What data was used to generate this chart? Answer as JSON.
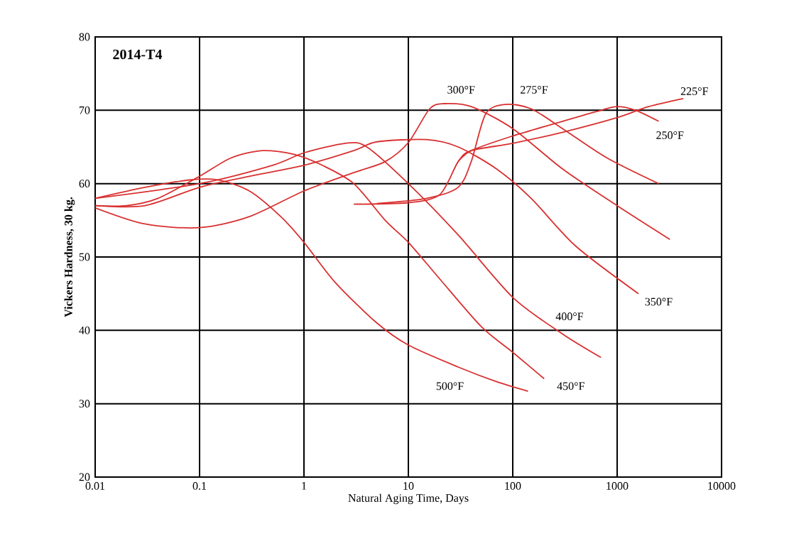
{
  "chart_data": {
    "type": "line",
    "xlabel": "Natural Aging Time, Days",
    "ylabel": "Vickers Hardness, 30 kg.",
    "log": "x",
    "grid": true,
    "marker": "none",
    "line_style": "solid",
    "xlim": [
      0.01,
      10000
    ],
    "xticks": [
      0.01,
      0.1,
      1,
      10,
      100,
      1000,
      10000
    ],
    "ylim": [
      20,
      80
    ],
    "yticks": [
      20,
      30,
      40,
      50,
      60,
      70,
      80
    ],
    "series": [
      {
        "color": "#d93030",
        "x": [
          3,
          10,
          20,
          30,
          40,
          100,
          300,
          1000,
          2000,
          4300
        ],
        "values": [
          57.2,
          57.4,
          58.5,
          63,
          64.5,
          65.5,
          67,
          69,
          70.5,
          71.6
        ]
      },
      {
        "color": "#d93030",
        "x": [
          30,
          40,
          100,
          300,
          700,
          1000,
          1500,
          2500
        ],
        "values": [
          63,
          64.5,
          66.5,
          68.5,
          70,
          70.5,
          70,
          68.5
        ]
      },
      {
        "color": "#d93030",
        "x": [
          5,
          15,
          30,
          40,
          55,
          85,
          150,
          300,
          800,
          2500
        ],
        "values": [
          57.3,
          58,
          59.5,
          63,
          69.5,
          70.8,
          70.2,
          67.5,
          63.5,
          60
        ]
      },
      {
        "color": "#d93030",
        "x": [
          0.01,
          0.03,
          0.1,
          0.3,
          1,
          3,
          6,
          10,
          16,
          22,
          40,
          100,
          300,
          1000,
          3200
        ],
        "values": [
          56.7,
          54.5,
          54,
          55.5,
          59,
          61.5,
          63,
          65.6,
          70.2,
          70.9,
          70.5,
          67.5,
          62,
          57,
          52.4
        ]
      },
      {
        "color": "#d93030",
        "x": [
          0.01,
          0.03,
          0.1,
          0.3,
          1,
          3,
          5,
          15,
          30,
          70,
          150,
          400,
          1600
        ],
        "values": [
          57,
          57,
          59.5,
          61,
          62.5,
          64.5,
          65.7,
          66,
          65,
          62,
          58,
          51.5,
          45
        ]
      },
      {
        "color": "#d93030",
        "x": [
          0.01,
          0.1,
          0.5,
          1,
          2.5,
          4,
          10,
          30,
          100,
          300,
          700
        ],
        "values": [
          58,
          60,
          62.5,
          64.2,
          65.5,
          65,
          60,
          53,
          44.5,
          39.5,
          36.3
        ]
      },
      {
        "color": "#d93030",
        "x": [
          0.01,
          0.02,
          0.04,
          0.1,
          0.2,
          0.4,
          0.8,
          1.5,
          3,
          6,
          10,
          20,
          50,
          100,
          200
        ],
        "values": [
          57,
          57,
          58,
          61,
          63.5,
          64.5,
          64,
          62.5,
          60,
          55,
          52,
          47,
          40.5,
          37,
          33.4
        ]
      },
      {
        "color": "#d93030",
        "x": [
          0.01,
          0.03,
          0.08,
          0.15,
          0.3,
          0.6,
          1,
          2,
          5,
          10,
          30,
          70,
          140
        ],
        "values": [
          58,
          59.5,
          60.5,
          60.5,
          59,
          55.5,
          52,
          46.5,
          41,
          38,
          35,
          33,
          31.7
        ]
      }
    ],
    "annotations": [
      "**2014-T4**",
      {
        "text": "225°F",
        "x": 5500,
        "y": 72.6
      },
      {
        "text": "250°F",
        "x": 3200,
        "y": 66.6
      },
      {
        "text": "275°F",
        "x": 160,
        "y": 72.8
      },
      {
        "text": "300°F",
        "x": 32,
        "y": 72.8
      },
      {
        "text": "350°F",
        "x": 2500,
        "y": 43.9
      },
      {
        "text": "400°F",
        "x": 350,
        "y": 41.9
      },
      {
        "text": "450°F",
        "x": 360,
        "y": 32.4
      },
      {
        "text": "500°F",
        "x": 25,
        "y": 32.4
      }
    ]
  }
}
